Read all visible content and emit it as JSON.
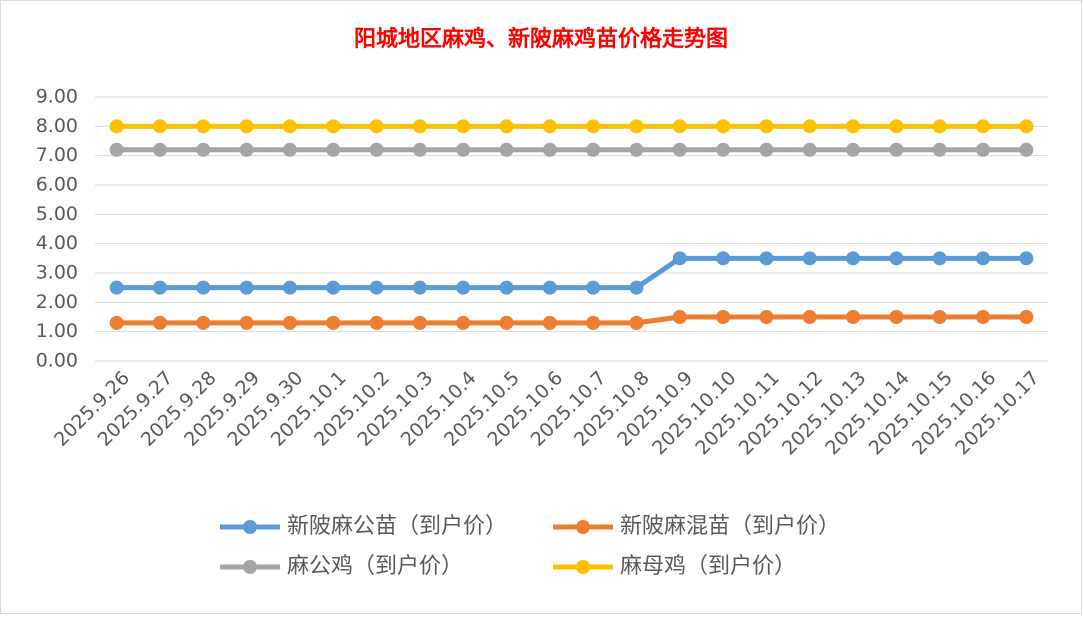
{
  "chart_data": {
    "type": "line",
    "title": "阳城地区麻鸡、新陂麻鸡苗价格走势图",
    "categories": [
      "2025.9.26",
      "2025.9.27",
      "2025.9.28",
      "2025.9.29",
      "2025.9.30",
      "2025.10.1",
      "2025.10.2",
      "2025.10.3",
      "2025.10.4",
      "2025.10.5",
      "2025.10.6",
      "2025.10.7",
      "2025.10.8",
      "2025.10.9",
      "2025.10.10",
      "2025.10.11",
      "2025.10.12",
      "2025.10.13",
      "2025.10.14",
      "2025.10.15",
      "2025.10.16",
      "2025.10.17"
    ],
    "series": [
      {
        "name": "新陂麻公苗（到户价）",
        "color": "#5b9bd5",
        "values": [
          2.5,
          2.5,
          2.5,
          2.5,
          2.5,
          2.5,
          2.5,
          2.5,
          2.5,
          2.5,
          2.5,
          2.5,
          2.5,
          3.5,
          3.5,
          3.5,
          3.5,
          3.5,
          3.5,
          3.5,
          3.5,
          3.5
        ]
      },
      {
        "name": "新陂麻混苗（到户价）",
        "color": "#ed7d31",
        "values": [
          1.3,
          1.3,
          1.3,
          1.3,
          1.3,
          1.3,
          1.3,
          1.3,
          1.3,
          1.3,
          1.3,
          1.3,
          1.3,
          1.5,
          1.5,
          1.5,
          1.5,
          1.5,
          1.5,
          1.5,
          1.5,
          1.5
        ]
      },
      {
        "name": "麻公鸡（到户价）",
        "color": "#a5a5a5",
        "values": [
          7.2,
          7.2,
          7.2,
          7.2,
          7.2,
          7.2,
          7.2,
          7.2,
          7.2,
          7.2,
          7.2,
          7.2,
          7.2,
          7.2,
          7.2,
          7.2,
          7.2,
          7.2,
          7.2,
          7.2,
          7.2,
          7.2
        ]
      },
      {
        "name": "麻母鸡（到户价）",
        "color": "#ffc000",
        "values": [
          8,
          8,
          8,
          8,
          8,
          8,
          8,
          8,
          8,
          8,
          8,
          8,
          8,
          8,
          8,
          8,
          8,
          8,
          8,
          8,
          8,
          8
        ]
      }
    ],
    "ylim": [
      0,
      9
    ],
    "yticks": [
      {
        "value": 0,
        "label": "0.00"
      },
      {
        "value": 1,
        "label": "1.00"
      },
      {
        "value": 2,
        "label": "2.00"
      },
      {
        "value": 3,
        "label": "3.00"
      },
      {
        "value": 4,
        "label": "4.00"
      },
      {
        "value": 5,
        "label": "5.00"
      },
      {
        "value": 6,
        "label": "6.00"
      },
      {
        "value": 7,
        "label": "7.00"
      },
      {
        "value": 8,
        "label": "8.00"
      },
      {
        "value": 9,
        "label": "9.00"
      }
    ],
    "grid": true
  }
}
